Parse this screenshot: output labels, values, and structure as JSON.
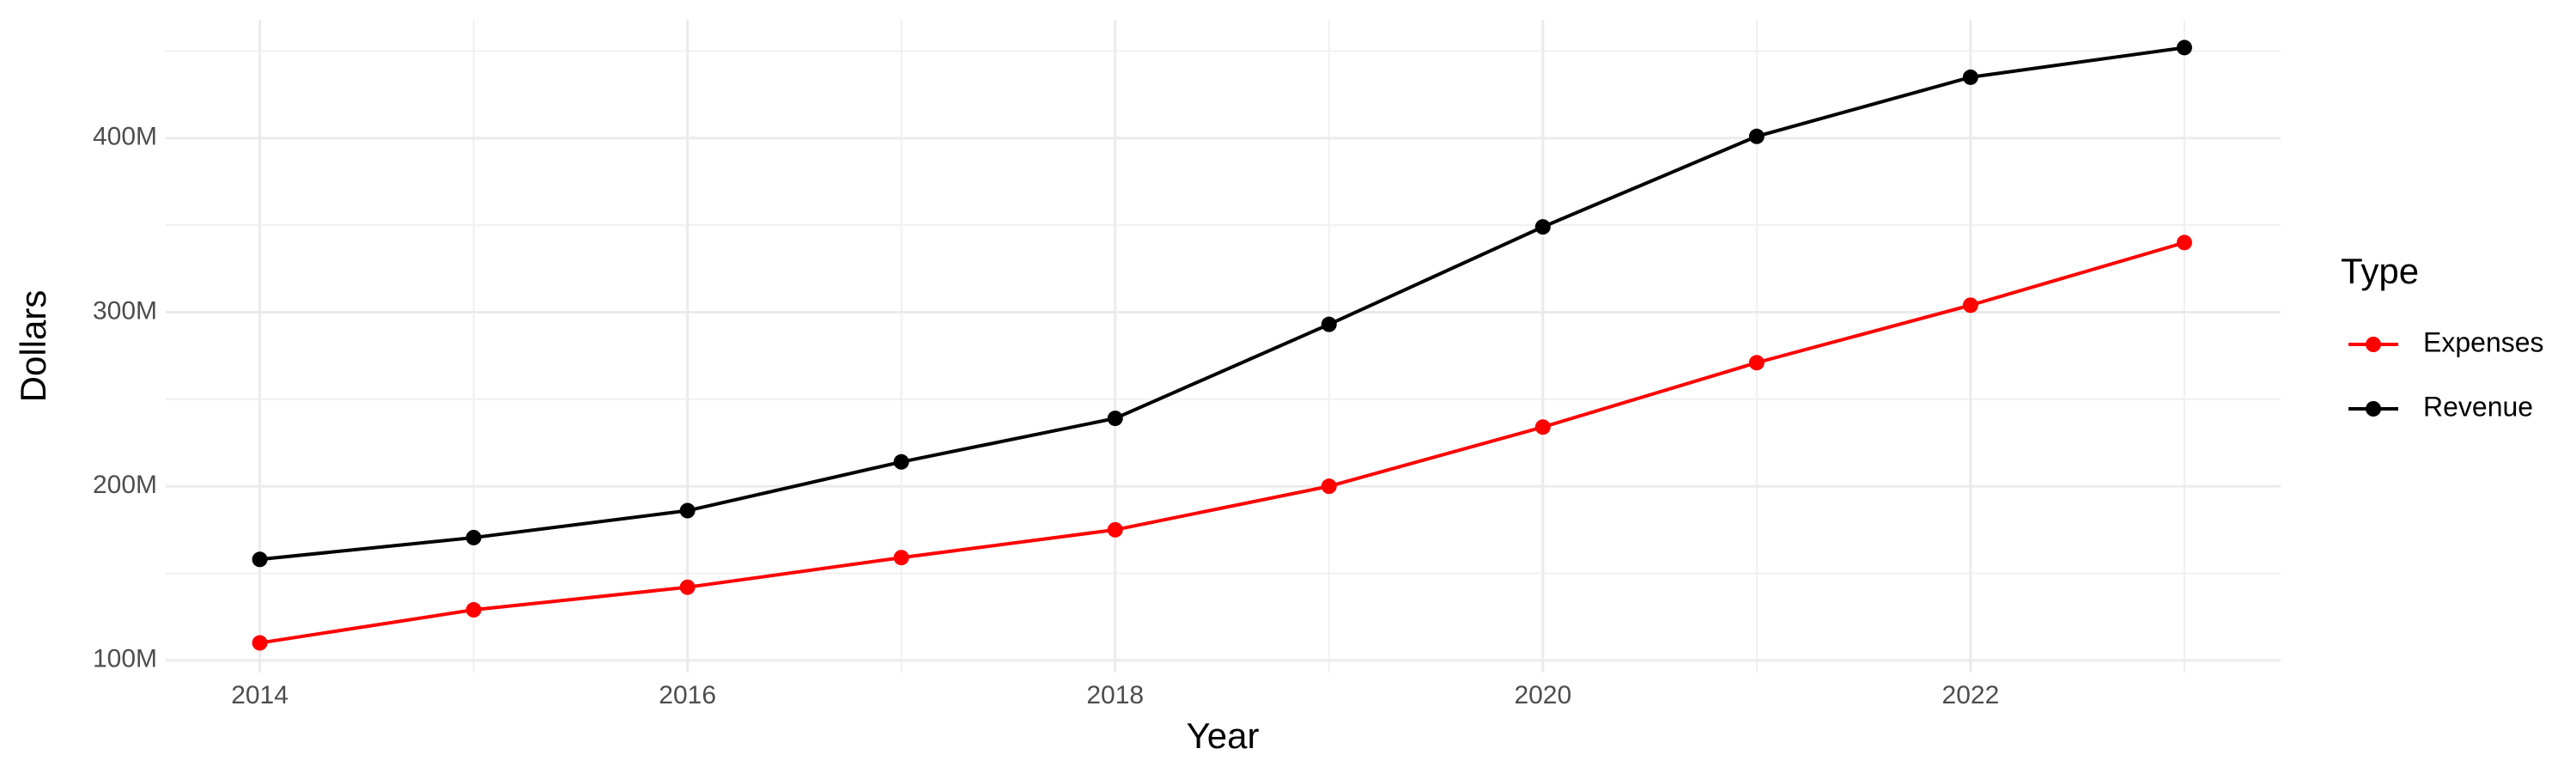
{
  "chart_data": {
    "type": "line",
    "x_label": "Year",
    "y_label": "Dollars",
    "x": [
      2014,
      2015,
      2016,
      2017,
      2018,
      2019,
      2020,
      2021,
      2022,
      2023
    ],
    "series": [
      {
        "name": "Expenses",
        "color": "#ff0000",
        "values": [
          110000000,
          129000000,
          142000000,
          159000000,
          175000000,
          200000000,
          234000000,
          271000000,
          304000000,
          340000000
        ]
      },
      {
        "name": "Revenue",
        "color": "#000000",
        "values": [
          158000000,
          170500000,
          186000000,
          214000000,
          239000000,
          293000000,
          349000000,
          401000000,
          435000000,
          452000000
        ]
      }
    ],
    "xlim": [
      2013.56,
      2023.45
    ],
    "xticks": [
      2014,
      2016,
      2018,
      2020,
      2022
    ],
    "ylim": [
      93000000,
      468000000
    ],
    "yticks": [
      {
        "value": 100000000,
        "label": "100M"
      },
      {
        "value": 200000000,
        "label": "200M"
      },
      {
        "value": 300000000,
        "label": "300M"
      },
      {
        "value": 400000000,
        "label": "400M"
      }
    ],
    "grid": true,
    "legend_title": "Type",
    "legend_position": "right"
  }
}
